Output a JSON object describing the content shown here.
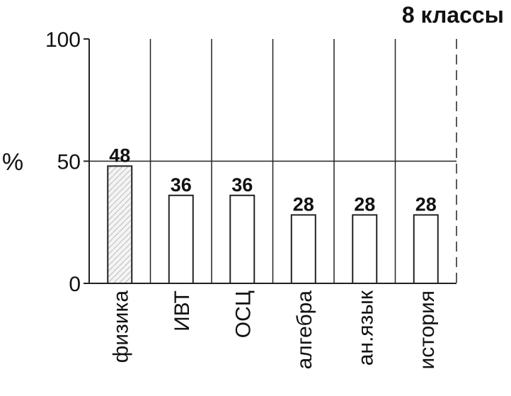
{
  "chart_data": {
    "type": "bar",
    "title": "8 классы",
    "y_label": "%",
    "categories": [
      "физика",
      "ИВТ",
      "ОСЦ",
      "алгебра",
      "ан.язык",
      "история"
    ],
    "values": [
      48,
      36,
      36,
      28,
      28,
      28
    ],
    "ylim": [
      0,
      100
    ],
    "yticks": [
      0,
      50,
      100
    ],
    "grid": true,
    "color": "#ffffff"
  }
}
